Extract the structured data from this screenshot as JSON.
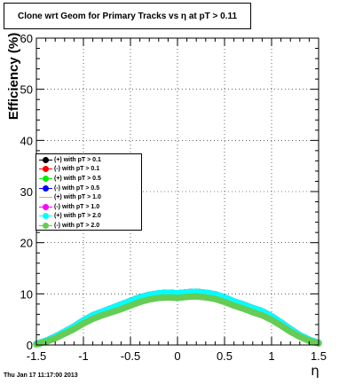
{
  "title": "Clone wrt Geom for Primary Tracks vs η at pT > 0.11",
  "footer": "Thu Jan 17 11:17:00 2013",
  "chart_data": {
    "type": "scatter",
    "title": "Clone wrt Geom for Primary Tracks vs η at pT > 0.11",
    "xlabel": "η",
    "ylabel": "Efficiency (%)",
    "xlim": [
      -1.5,
      1.5
    ],
    "ylim": [
      0,
      60
    ],
    "xticks": [
      "-1.5",
      "-1",
      "-0.5",
      "0",
      "0.5",
      "1",
      "1.5"
    ],
    "yticks": [
      "0",
      "10",
      "20",
      "30",
      "40",
      "50",
      "60"
    ],
    "x_tick_values": [
      -1.5,
      -1,
      -0.5,
      0,
      0.5,
      1,
      1.5
    ],
    "y_tick_values": [
      0,
      10,
      20,
      30,
      40,
      50,
      60
    ],
    "grid": true,
    "legend_position": "left-middle",
    "x": [
      -1.5,
      -1.4,
      -1.3,
      -1.2,
      -1.1,
      -1.0,
      -0.9,
      -0.8,
      -0.7,
      -0.6,
      -0.5,
      -0.4,
      -0.3,
      -0.2,
      -0.1,
      0.0,
      0.1,
      0.2,
      0.3,
      0.4,
      0.5,
      0.6,
      0.7,
      0.8,
      0.9,
      1.0,
      1.1,
      1.2,
      1.3,
      1.4,
      1.5
    ],
    "series": [
      {
        "name": "(+) with pT > 0.1",
        "color": "#000000",
        "marker": "dot",
        "values": [
          0.2,
          0.8,
          1.6,
          2.6,
          3.6,
          4.8,
          5.8,
          6.5,
          7.2,
          7.9,
          8.6,
          9.3,
          9.8,
          10.1,
          10.2,
          10.1,
          10.3,
          10.4,
          10.2,
          9.9,
          9.3,
          8.5,
          7.9,
          7.2,
          6.6,
          5.6,
          4.4,
          3.1,
          1.9,
          1.0,
          0.4
        ]
      },
      {
        "name": "(-) with pT > 0.1",
        "color": "#ff0000",
        "marker": "dot",
        "values": [
          0.2,
          0.8,
          1.6,
          2.6,
          3.6,
          4.8,
          5.8,
          6.5,
          7.2,
          7.9,
          8.6,
          9.3,
          9.8,
          10.1,
          10.2,
          10.1,
          10.3,
          10.4,
          10.2,
          9.9,
          9.3,
          8.5,
          7.9,
          7.2,
          6.6,
          5.6,
          4.4,
          3.1,
          1.9,
          1.0,
          0.4
        ]
      },
      {
        "name": "(+) with pT > 0.5",
        "color": "#00ee00",
        "marker": "dot",
        "values": [
          0.2,
          0.8,
          1.6,
          2.6,
          3.6,
          4.8,
          5.8,
          6.5,
          7.2,
          7.9,
          8.6,
          9.3,
          9.8,
          10.1,
          10.2,
          10.1,
          10.3,
          10.4,
          10.2,
          9.9,
          9.3,
          8.5,
          7.9,
          7.2,
          6.6,
          5.6,
          4.4,
          3.1,
          1.9,
          1.0,
          0.4
        ]
      },
      {
        "name": "(-) with pT > 0.5",
        "color": "#0000ff",
        "marker": "dot",
        "values": [
          0.2,
          0.8,
          1.6,
          2.6,
          3.6,
          4.8,
          5.8,
          6.5,
          7.2,
          7.9,
          8.6,
          9.3,
          9.8,
          10.1,
          10.2,
          10.1,
          10.3,
          10.4,
          10.2,
          9.9,
          9.3,
          8.5,
          7.9,
          7.2,
          6.6,
          5.6,
          4.4,
          3.1,
          1.9,
          1.0,
          0.4
        ]
      },
      {
        "name": "(+) with pT > 1.0",
        "color": "#ffff00",
        "marker": "line",
        "values": [
          0.2,
          0.8,
          1.6,
          2.6,
          3.6,
          4.8,
          5.8,
          6.5,
          7.2,
          7.9,
          8.6,
          9.3,
          9.8,
          10.1,
          10.2,
          10.1,
          10.3,
          10.4,
          10.2,
          9.9,
          9.3,
          8.5,
          7.9,
          7.2,
          6.6,
          5.6,
          4.4,
          3.1,
          1.9,
          1.0,
          0.4
        ]
      },
      {
        "name": "(-) with pT > 1.0",
        "color": "#ff00ff",
        "marker": "dot",
        "values": [
          0.2,
          0.8,
          1.6,
          2.6,
          3.6,
          4.8,
          5.8,
          6.5,
          7.2,
          7.9,
          8.6,
          9.3,
          9.8,
          10.1,
          10.2,
          10.1,
          10.3,
          10.4,
          10.2,
          9.9,
          9.3,
          8.5,
          7.9,
          7.2,
          6.6,
          5.6,
          4.4,
          3.1,
          1.9,
          1.0,
          0.4
        ]
      },
      {
        "name": "(+) with pT > 2.0",
        "color": "#00ffff",
        "marker": "dot",
        "values": [
          0.2,
          0.8,
          1.6,
          2.6,
          3.6,
          4.8,
          5.8,
          6.5,
          7.2,
          7.9,
          8.6,
          9.3,
          9.8,
          10.1,
          10.2,
          10.1,
          10.3,
          10.4,
          10.2,
          9.9,
          9.3,
          8.5,
          7.9,
          7.2,
          6.6,
          5.6,
          4.4,
          3.1,
          1.9,
          1.0,
          0.4
        ]
      },
      {
        "name": "(-) with pT > 2.0",
        "color": "#66cc55",
        "marker": "dot",
        "values": [
          0.1,
          0.6,
          1.3,
          2.2,
          3.1,
          4.2,
          5.1,
          5.8,
          6.4,
          7.0,
          7.7,
          8.4,
          8.9,
          9.2,
          9.3,
          9.2,
          9.4,
          9.5,
          9.3,
          9.0,
          8.4,
          7.7,
          7.1,
          6.4,
          5.8,
          4.9,
          3.8,
          2.6,
          1.6,
          0.8,
          0.3
        ]
      }
    ]
  }
}
